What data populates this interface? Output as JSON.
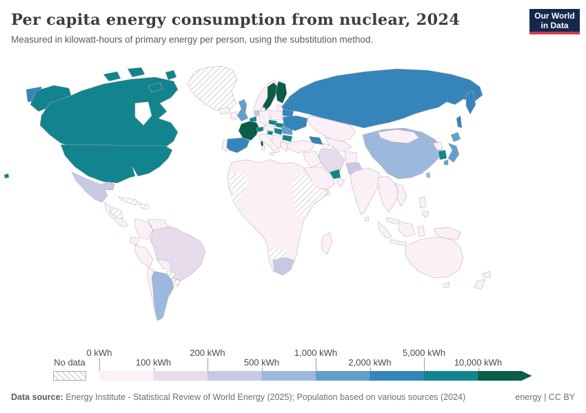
{
  "header": {
    "title": "Per capita energy consumption from nuclear, 2024",
    "subtitle": "Measured in kilowatt-hours of primary energy per person, using the substitution method.",
    "logo": {
      "line1": "Our World",
      "line2": "in Data",
      "bg_color": "#12294b",
      "accent_color": "#d9364d"
    }
  },
  "legend": {
    "no_data_label": "No data",
    "ticks": [
      {
        "label": "0 kWh",
        "row": "top"
      },
      {
        "label": "100 kWh",
        "row": "bottom"
      },
      {
        "label": "200 kWh",
        "row": "top"
      },
      {
        "label": "500 kWh",
        "row": "bottom"
      },
      {
        "label": "1,000 kWh",
        "row": "top"
      },
      {
        "label": "2,000 kWh",
        "row": "bottom"
      },
      {
        "label": "5,000 kWh",
        "row": "top"
      },
      {
        "label": "10,000 kWh",
        "row": "bottom"
      }
    ]
  },
  "footer": {
    "datasource_label": "Data source:",
    "datasource_text": " Energy Institute - Statistical Review of World Energy (2025); Population based on various sources (2024)",
    "license": "energy | CC BY"
  },
  "chart_data": {
    "type": "choropleth-map",
    "title": "Per capita energy consumption from nuclear, 2024",
    "unit": "kilowatt-hours of primary energy per person (substitution method)",
    "year": 2024,
    "projection": "world equirectangular",
    "no_data_label": "No data",
    "no_data_pattern": "diagonal-hatch",
    "border_color": "#b9aeb6",
    "legend_bins": [
      {
        "range": "0–100 kWh",
        "color": "#fbf0f6"
      },
      {
        "range": "100–200 kWh",
        "color": "#e6dcec"
      },
      {
        "range": "200–500 kWh",
        "color": "#c7c9e3"
      },
      {
        "range": "500–1,000 kWh",
        "color": "#9cb8dc"
      },
      {
        "range": "1,000–2,000 kWh",
        "color": "#61a0cb"
      },
      {
        "range": "2,000–5,000 kWh",
        "color": "#3585ba"
      },
      {
        "range": "5,000–10,000 kWh",
        "color": "#12848e"
      },
      {
        "range": "10,000+ kWh",
        "color": "#095e45"
      }
    ],
    "countries": {
      "united-states": "5,000–10,000 kWh",
      "alaska": "5,000–10,000 kWh",
      "hawaii": "5,000–10,000 kWh",
      "canada": "5,000–10,000 kWh",
      "greenland": "No data",
      "iceland": "0–100 kWh",
      "mexico": "200–500 kWh",
      "central-america": "0–100 kWh",
      "honduras-nicaragua": "No data",
      "cuba": "No data",
      "hispaniola": "No data",
      "colombia": "0–100 kWh",
      "venezuela": "0–100 kWh",
      "guyanas": "No data",
      "ecuador": "0–100 kWh",
      "peru": "0–100 kWh",
      "bolivia": "0–100 kWh",
      "brazil": "100–200 kWh",
      "paraguay": "No data",
      "uruguay": "No data",
      "chile": "0–100 kWh",
      "argentina": "500–1,000 kWh",
      "norway": "0–100 kWh",
      "sweden": "10,000+ kWh",
      "finland": "10,000+ kWh",
      "baltics": "0–100 kWh",
      "denmark": "0–100 kWh",
      "united-kingdom": "1,000–2,000 kWh",
      "ireland": "0–100 kWh",
      "netherlands": "200–500 kWh",
      "belgium": "5,000–10,000 kWh",
      "germany": "0–100 kWh",
      "poland": "0–100 kWh",
      "france": "10,000+ kWh",
      "switzerland": "5,000–10,000 kWh",
      "czechia": "5,000–10,000 kWh",
      "slovakia": "5,000–10,000 kWh",
      "austria": "0–100 kWh",
      "hungary": "5,000–10,000 kWh",
      "slovenia": "5,000–10,000 kWh",
      "balkans": "0–100 kWh",
      "italy": "0–100 kWh",
      "spain": "2,000–5,000 kWh",
      "portugal": "0–100 kWh",
      "romania": "1,000–2,000 kWh",
      "bulgaria": "5,000–10,000 kWh",
      "greece": "0–100 kWh",
      "belarus": "2,000–5,000 kWh",
      "ukraine": "2,000–5,000 kWh",
      "russia": "2,000–5,000 kWh",
      "kazakhstan": "0–100 kWh",
      "central-asia": "0–100 kWh",
      "turkmenistan": "No data",
      "caucasus": "2,000–5,000 kWh",
      "turkey": "0–100 kWh",
      "iraq-syria": "0–100 kWh",
      "saudi-arabia": "0–100 kWh",
      "uae": "5,000–10,000 kWh",
      "oman": "0–100 kWh",
      "yemen": "No data",
      "iran": "100–200 kWh",
      "afghanistan": "0–100 kWh",
      "pakistan": "200–500 kWh",
      "india": "0–100 kWh",
      "sri-lanka": "0–100 kWh",
      "china": "500–1,000 kWh",
      "mongolia": "0–100 kWh",
      "north-korea": "0–100 kWh",
      "south-korea": "5,000–10,000 kWh",
      "japan": "1,000–2,000 kWh",
      "taiwan": "500–1,000 kWh",
      "myanmar-thailand": "0–100 kWh",
      "vietnam": "0–100 kWh",
      "malaysia": "0–100 kWh",
      "philippines": "0–100 kWh",
      "indonesia": "0–100 kWh",
      "new-guinea": "0–100 kWh",
      "australia": "0–100 kWh",
      "tasmania": "0–100 kWh",
      "new-zealand": "0–100 kWh",
      "africa-mainland": "0–100 kWh",
      "sahara-west": "No data",
      "guinea-region": "No data",
      "sudan-horn": "No data",
      "namibia-botswana": "No data",
      "south-africa": "200–500 kWh",
      "madagascar": "0–100 kWh"
    }
  }
}
